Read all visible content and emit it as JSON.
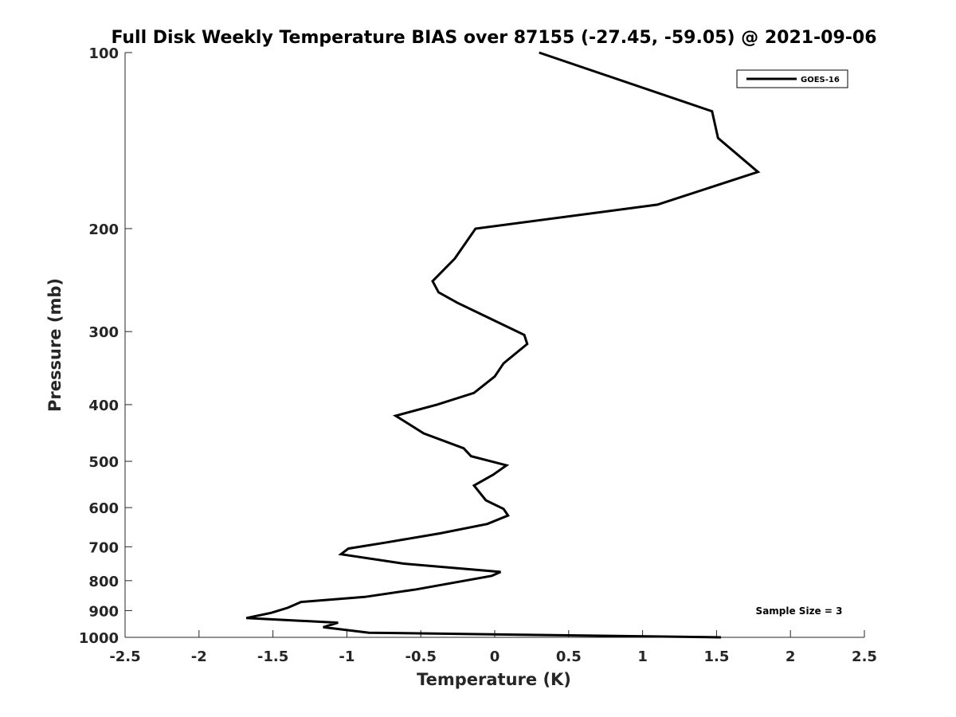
{
  "chart_data": {
    "type": "line",
    "title": "Full Disk Weekly Temperature BIAS over 87155 (-27.45, -59.05) @ 2021-09-06",
    "xlabel": "Temperature (K)",
    "ylabel": "Pressure (mb)",
    "xlim": [
      -2.5,
      2.5
    ],
    "ylim": [
      100,
      1000
    ],
    "y_scale": "log",
    "y_reversed": true,
    "x_ticks": [
      "-2.5",
      "-2",
      "-1.5",
      "-1",
      "-0.5",
      "0",
      "0.5",
      "1",
      "1.5",
      "2",
      "2.5"
    ],
    "y_ticks": [
      "100",
      "200",
      "300",
      "400",
      "500",
      "600",
      "700",
      "800",
      "900",
      "1000"
    ],
    "grid": false,
    "legend_position": "top-right",
    "annotation": "Sample Size = 3",
    "series": [
      {
        "name": "GOES-16",
        "color": "#000000",
        "x": [
          0.3,
          1.47,
          1.51,
          1.78,
          1.1,
          -0.13,
          -0.27,
          -0.42,
          -0.38,
          -0.25,
          0.2,
          0.22,
          0.06,
          0.0,
          -0.14,
          -0.39,
          -0.67,
          -0.48,
          -0.21,
          -0.16,
          0.08,
          -0.01,
          -0.14,
          -0.06,
          0.06,
          0.09,
          -0.05,
          -0.37,
          -0.73,
          -0.99,
          -1.04,
          -0.62,
          0.04,
          -0.02,
          -0.53,
          -0.88,
          -1.31,
          -1.4,
          -1.51,
          -1.68,
          -1.06,
          -1.16,
          -0.85,
          1.53
        ],
        "y": [
          100,
          126,
          140,
          160,
          182,
          200,
          225,
          246,
          257,
          268,
          304,
          315,
          340,
          358,
          382,
          400,
          418,
          448,
          475,
          490,
          508,
          527,
          550,
          583,
          603,
          619,
          640,
          664,
          688,
          705,
          721,
          748,
          773,
          785,
          828,
          853,
          870,
          890,
          908,
          927,
          944,
          961,
          982,
          1000
        ]
      }
    ]
  }
}
